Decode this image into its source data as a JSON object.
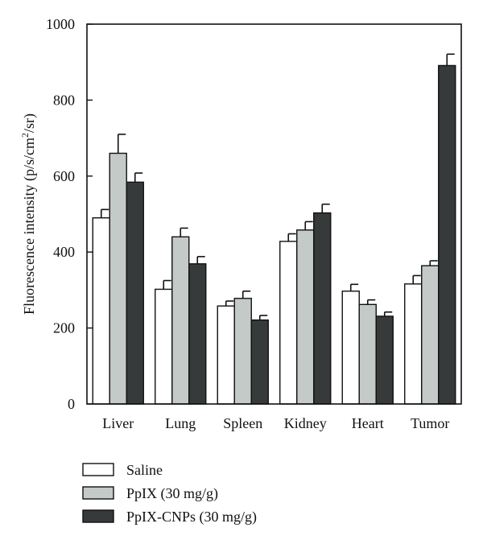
{
  "chart_data": {
    "type": "bar",
    "categories": [
      "Liver",
      "Lung",
      "Spleen",
      "Kidney",
      "Heart",
      "Tumor"
    ],
    "series": [
      {
        "name": "Saline",
        "color": "#ffffff",
        "values": [
          490,
          302,
          258,
          428,
          297,
          316
        ],
        "errors": [
          22,
          23,
          13,
          20,
          18,
          22
        ]
      },
      {
        "name": "PpIX (30 mg/g)",
        "color": "#c4cac8",
        "values": [
          660,
          440,
          278,
          458,
          262,
          364
        ],
        "errors": [
          50,
          23,
          19,
          22,
          12,
          13
        ]
      },
      {
        "name": "PpIX-CNPs (30 mg/g)",
        "color": "#363a3a",
        "values": [
          584,
          369,
          221,
          503,
          231,
          891
        ],
        "errors": [
          24,
          19,
          12,
          23,
          11,
          30
        ]
      }
    ],
    "ylabel_main": "Fluorescence intensity (p/s/cm",
    "ylabel_sup": "2",
    "ylabel_end": "/sr)",
    "ylim": [
      0,
      1000
    ],
    "yticks": [
      0,
      200,
      400,
      600,
      800,
      1000
    ],
    "grid": false,
    "legend_position": "bottom-left"
  }
}
